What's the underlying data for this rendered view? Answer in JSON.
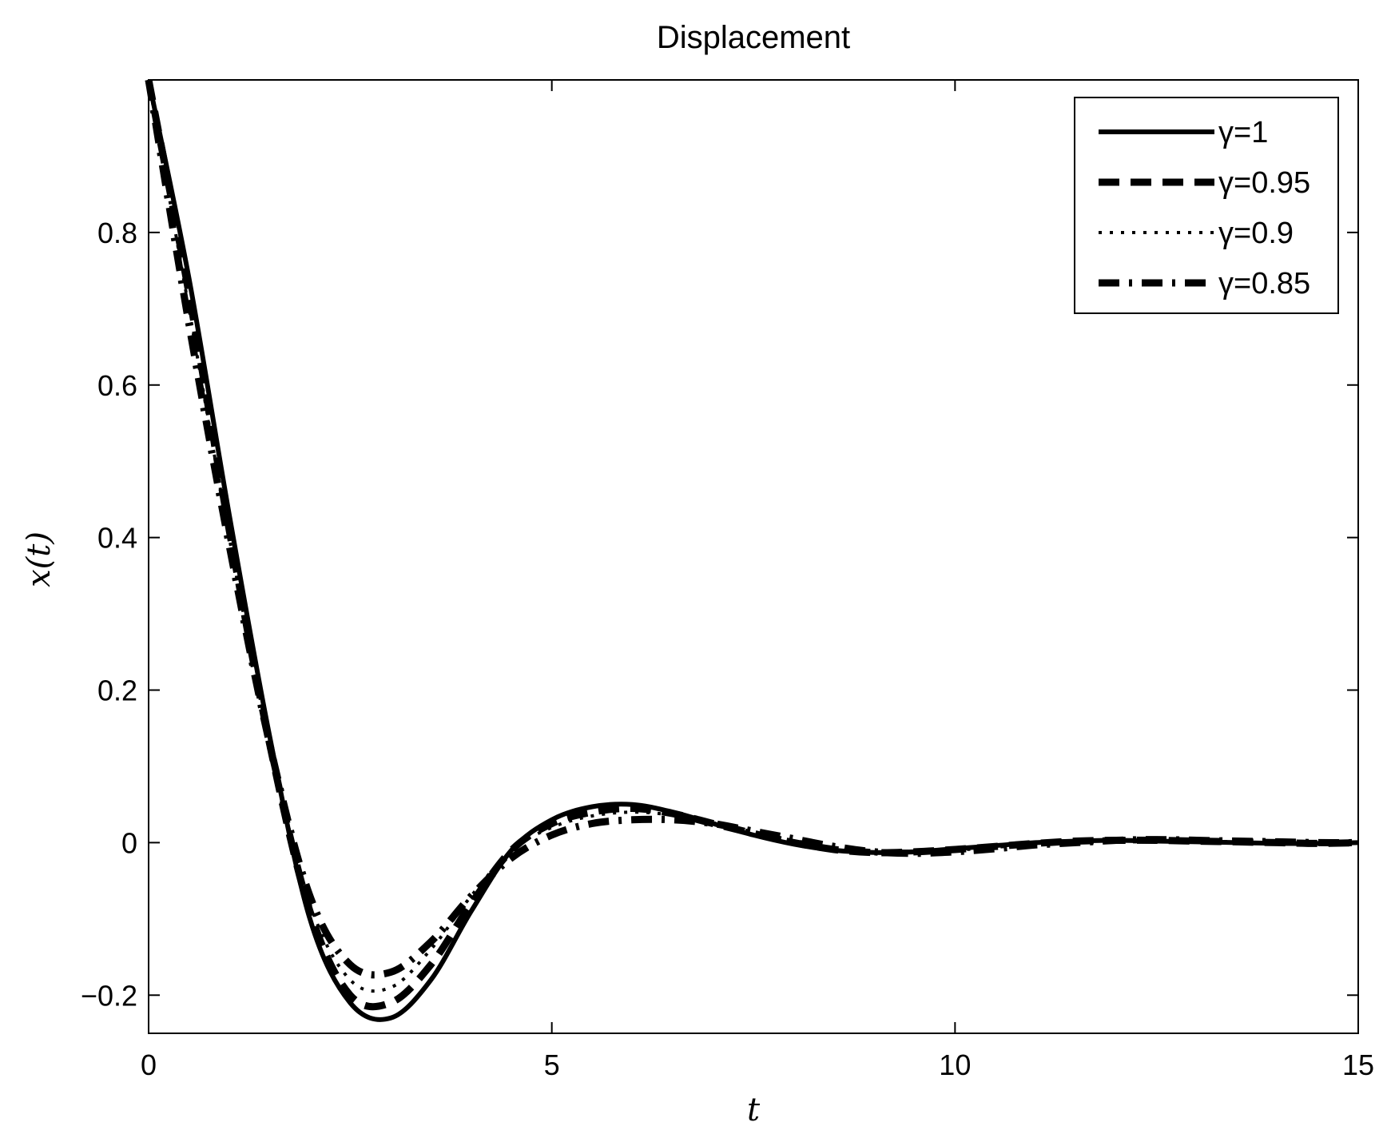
{
  "chart_data": {
    "type": "line",
    "title": "Displacement",
    "xlabel": "t",
    "ylabel": "x(t)",
    "xlim": [
      0,
      15
    ],
    "ylim": [
      -0.25,
      1.0
    ],
    "xticks": [
      0,
      5,
      10,
      15
    ],
    "yticks": [
      -0.2,
      0,
      0.2,
      0.4,
      0.6,
      0.8
    ],
    "xtick_labels": [
      "0",
      "5",
      "10",
      "15"
    ],
    "ytick_labels": [
      "−0.2",
      "0",
      "0.2",
      "0.4",
      "0.6",
      "0.8"
    ],
    "grid": false,
    "legend_position": "top-right",
    "x": [
      0,
      0.5,
      1.0,
      1.5,
      2.0,
      2.5,
      3.0,
      3.5,
      4.0,
      4.5,
      5.0,
      5.5,
      6.0,
      6.5,
      7.0,
      7.5,
      8.0,
      8.5,
      9.0,
      9.5,
      10.0,
      10.5,
      11.0,
      11.5,
      12.0,
      12.5,
      13.0,
      13.5,
      14.0,
      14.5,
      15.0
    ],
    "series": [
      {
        "name": "γ=1",
        "style": "solid",
        "values": [
          1.0,
          0.74,
          0.43,
          0.14,
          -0.1,
          -0.21,
          -0.23,
          -0.18,
          -0.09,
          -0.01,
          0.03,
          0.047,
          0.05,
          0.04,
          0.025,
          0.01,
          -0.002,
          -0.01,
          -0.013,
          -0.012,
          -0.008,
          -0.004,
          0.0,
          0.002,
          0.003,
          0.002,
          0.001,
          0.0,
          -0.001,
          -0.001,
          0.0
        ]
      },
      {
        "name": "γ=0.95",
        "style": "dashed",
        "values": [
          1.0,
          0.72,
          0.41,
          0.13,
          -0.09,
          -0.2,
          -0.21,
          -0.16,
          -0.08,
          -0.01,
          0.025,
          0.04,
          0.045,
          0.038,
          0.025,
          0.012,
          0.0,
          -0.009,
          -0.013,
          -0.012,
          -0.009,
          -0.005,
          -0.001,
          0.002,
          0.003,
          0.003,
          0.002,
          0.001,
          0.0,
          -0.001,
          0.0
        ]
      },
      {
        "name": "γ=0.9",
        "style": "dotted",
        "values": [
          1.0,
          0.7,
          0.4,
          0.13,
          -0.08,
          -0.18,
          -0.19,
          -0.14,
          -0.07,
          -0.01,
          0.02,
          0.035,
          0.04,
          0.036,
          0.026,
          0.014,
          0.003,
          -0.007,
          -0.012,
          -0.012,
          -0.01,
          -0.006,
          -0.002,
          0.001,
          0.003,
          0.003,
          0.002,
          0.001,
          0.0,
          0.0,
          0.0
        ]
      },
      {
        "name": "γ=0.85",
        "style": "dashdot",
        "values": [
          1.0,
          0.68,
          0.39,
          0.13,
          -0.07,
          -0.16,
          -0.17,
          -0.13,
          -0.07,
          -0.02,
          0.01,
          0.025,
          0.03,
          0.03,
          0.025,
          0.015,
          0.005,
          -0.005,
          -0.012,
          -0.014,
          -0.012,
          -0.008,
          -0.003,
          0.0,
          0.003,
          0.004,
          0.003,
          0.002,
          0.001,
          0.0,
          0.0
        ]
      }
    ]
  }
}
